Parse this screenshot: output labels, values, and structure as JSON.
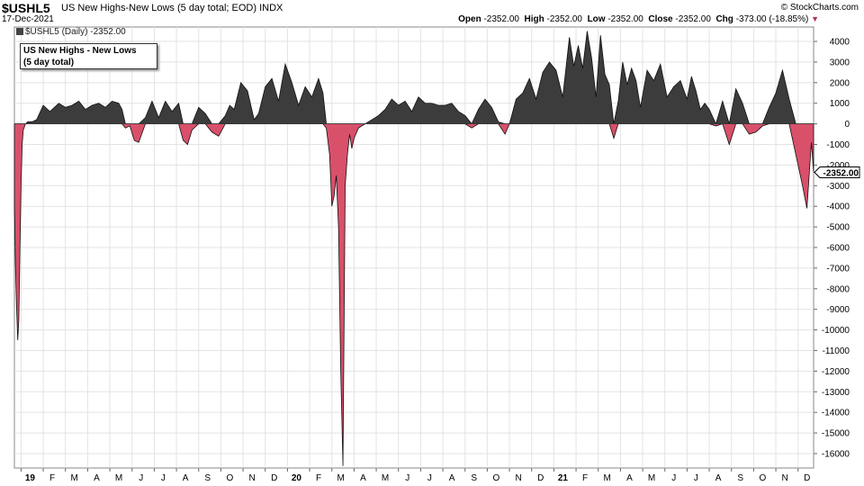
{
  "header": {
    "symbol": "$USHL5",
    "title": "US New Highs-New Lows (5 day total; EOD) INDX",
    "date": "17-Dec-2021",
    "brand": "© StockCharts.com",
    "open_label": "Open",
    "open": "-2352.00",
    "high_label": "High",
    "high": "-2352.00",
    "low_label": "Low",
    "low": "-2352.00",
    "close_label": "Close",
    "close": "-2352.00",
    "chg_label": "Chg",
    "chg": "-373.00 (-18.85%)"
  },
  "series_label": "$USHL5 (Daily) -2352.00",
  "legend": {
    "line1": "US New Highs - New Lows",
    "line2": "(5 day total)"
  },
  "colors": {
    "positive": "#3c3c3c",
    "negative": "#d9506a",
    "grid": "#e3e3e3"
  },
  "last_value_tag": "-2352.00",
  "chart_data": {
    "type": "area",
    "title": "US New Highs-New Lows (5 day total; EOD)",
    "ylim": [
      -16700,
      4700
    ],
    "yticks": [
      4000,
      3000,
      2000,
      1000,
      0,
      -1000,
      -2000,
      -3000,
      -4000,
      -5000,
      -6000,
      -7000,
      -8000,
      -9000,
      -10000,
      -11000,
      -12000,
      -13000,
      -14000,
      -15000,
      -16000
    ],
    "ytick_labels": [
      "4000",
      "3000",
      "2000",
      "1000",
      "0",
      "-1000",
      "-2000",
      "-3000",
      "-4000",
      "-5000",
      "-6000",
      "-7000",
      "-8000",
      "-9000",
      "-10000",
      "-11000",
      "-12000",
      "-13000",
      "-14000",
      "-15000",
      "-16000"
    ],
    "xlim": [
      0,
      36
    ],
    "xticks": [
      {
        "x": 0.3,
        "label": "19",
        "bold": true
      },
      {
        "x": 1.3,
        "label": "F"
      },
      {
        "x": 2.3,
        "label": "M"
      },
      {
        "x": 3.3,
        "label": "A"
      },
      {
        "x": 4.3,
        "label": "M"
      },
      {
        "x": 5.3,
        "label": "J"
      },
      {
        "x": 6.3,
        "label": "J"
      },
      {
        "x": 7.3,
        "label": "A"
      },
      {
        "x": 8.3,
        "label": "S"
      },
      {
        "x": 9.3,
        "label": "O"
      },
      {
        "x": 10.3,
        "label": "N"
      },
      {
        "x": 11.3,
        "label": "D"
      },
      {
        "x": 12.3,
        "label": "20",
        "bold": true
      },
      {
        "x": 13.3,
        "label": "F"
      },
      {
        "x": 14.3,
        "label": "M"
      },
      {
        "x": 15.3,
        "label": "A"
      },
      {
        "x": 16.3,
        "label": "M"
      },
      {
        "x": 17.3,
        "label": "J"
      },
      {
        "x": 18.3,
        "label": "J"
      },
      {
        "x": 19.3,
        "label": "A"
      },
      {
        "x": 20.3,
        "label": "S"
      },
      {
        "x": 21.3,
        "label": "O"
      },
      {
        "x": 22.3,
        "label": "N"
      },
      {
        "x": 23.3,
        "label": "D"
      },
      {
        "x": 24.3,
        "label": "21",
        "bold": true
      },
      {
        "x": 25.3,
        "label": "F"
      },
      {
        "x": 26.3,
        "label": "M"
      },
      {
        "x": 27.3,
        "label": "A"
      },
      {
        "x": 28.3,
        "label": "M"
      },
      {
        "x": 29.3,
        "label": "J"
      },
      {
        "x": 30.3,
        "label": "J"
      },
      {
        "x": 31.3,
        "label": "A"
      },
      {
        "x": 32.3,
        "label": "S"
      },
      {
        "x": 33.3,
        "label": "O"
      },
      {
        "x": 34.3,
        "label": "N"
      },
      {
        "x": 35.3,
        "label": "D"
      }
    ],
    "x": [
      0,
      0.05,
      0.1,
      0.15,
      0.2,
      0.25,
      0.3,
      0.35,
      0.4,
      0.5,
      0.6,
      0.8,
      1.0,
      1.3,
      1.6,
      2.0,
      2.3,
      2.6,
      2.9,
      3.2,
      3.5,
      3.8,
      4.1,
      4.4,
      4.7,
      4.85,
      5.0,
      5.2,
      5.4,
      5.6,
      5.9,
      6.2,
      6.5,
      6.8,
      7.1,
      7.4,
      7.6,
      7.8,
      8.0,
      8.3,
      8.6,
      8.9,
      9.2,
      9.5,
      9.7,
      9.9,
      10.2,
      10.5,
      10.8,
      11.0,
      11.3,
      11.6,
      11.9,
      12.2,
      12.5,
      12.8,
      13.1,
      13.4,
      13.7,
      13.9,
      14.05,
      14.2,
      14.3,
      14.4,
      14.5,
      14.6,
      14.7,
      14.8,
      14.9,
      15.0,
      15.1,
      15.2,
      15.3,
      15.5,
      15.8,
      16.1,
      16.4,
      16.7,
      17.0,
      17.3,
      17.6,
      17.9,
      18.2,
      18.5,
      18.8,
      19.1,
      19.4,
      19.7,
      20.0,
      20.3,
      20.6,
      20.9,
      21.2,
      21.5,
      21.8,
      22.1,
      22.3,
      22.6,
      22.9,
      23.2,
      23.5,
      23.8,
      24.1,
      24.4,
      24.7,
      25.0,
      25.2,
      25.4,
      25.6,
      25.8,
      26.0,
      26.2,
      26.4,
      26.6,
      26.8,
      27.0,
      27.2,
      27.4,
      27.6,
      27.8,
      28.0,
      28.2,
      28.5,
      28.8,
      29.1,
      29.4,
      29.7,
      30.0,
      30.3,
      30.5,
      30.7,
      30.9,
      31.1,
      31.3,
      31.6,
      31.9,
      32.2,
      32.5,
      32.8,
      33.1,
      33.4,
      33.7,
      34.0,
      34.3,
      34.6,
      34.9,
      35.2,
      35.5,
      35.7,
      35.9,
      36.0
    ],
    "values": [
      -4000,
      -7000,
      -9000,
      -10500,
      -9500,
      -6000,
      -3000,
      -1000,
      -300,
      0,
      100,
      100,
      200,
      900,
      600,
      1000,
      800,
      900,
      1100,
      700,
      900,
      1000,
      800,
      1100,
      1000,
      700,
      -200,
      -100,
      -800,
      -900,
      300,
      1100,
      300,
      1100,
      600,
      1000,
      -800,
      -1000,
      -300,
      800,
      500,
      -400,
      -600,
      400,
      900,
      700,
      2000,
      1600,
      200,
      500,
      1800,
      2200,
      1100,
      2900,
      2000,
      900,
      1800,
      1300,
      2200,
      1500,
      -200,
      -1500,
      -4000,
      -3500,
      -2500,
      -5000,
      -12000,
      -16600,
      -3000,
      -1500,
      -500,
      -1200,
      -700,
      -200,
      0,
      200,
      400,
      700,
      1200,
      900,
      1100,
      600,
      1300,
      1000,
      1000,
      900,
      900,
      1000,
      600,
      400,
      -200,
      700,
      1200,
      800,
      100,
      -500,
      0,
      1200,
      1500,
      2200,
      1200,
      2500,
      3000,
      2600,
      1300,
      4200,
      2800,
      3800,
      2700,
      4500,
      3200,
      1300,
      4300,
      2400,
      1900,
      -700,
      1100,
      3000,
      1900,
      2700,
      2100,
      800,
      2600,
      2100,
      2900,
      1300,
      1800,
      2100,
      1200,
      2300,
      1600,
      700,
      1000,
      700,
      -100,
      1100,
      -1000,
      1700,
      1000,
      -500,
      -400,
      -100,
      800,
      1500,
      2600,
      1200,
      -1500,
      -3000,
      -4100,
      -900,
      -2352
    ]
  }
}
